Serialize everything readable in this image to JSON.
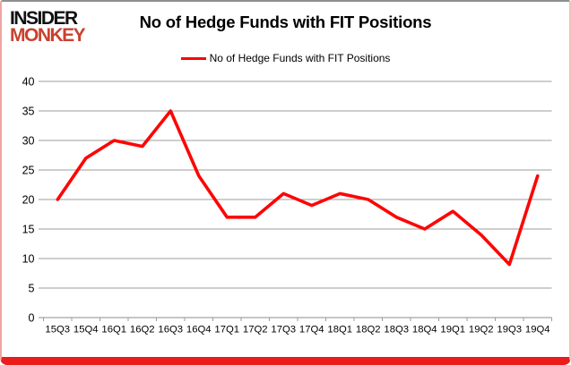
{
  "brand": {
    "line1": "INSIDER",
    "line2": "MONKEY"
  },
  "title": "No of Hedge Funds with FIT Positions",
  "legend": {
    "label": "No of Hedge Funds with FIT Positions",
    "color": "#ff0000"
  },
  "colors": {
    "series_red": "#fe0505",
    "logo_red": "#c9412f",
    "grid": "#9c9c9c",
    "axis": "#8c8c8c",
    "text": "#000000",
    "bottom_bar_red": "#ec1c1c"
  },
  "chart_data": {
    "type": "line",
    "title": "No of Hedge Funds with FIT Positions",
    "categories": [
      "15Q3",
      "15Q4",
      "16Q1",
      "16Q2",
      "16Q3",
      "16Q4",
      "17Q1",
      "17Q2",
      "17Q3",
      "17Q4",
      "18Q1",
      "18Q2",
      "18Q3",
      "18Q4",
      "19Q1",
      "19Q2",
      "19Q3",
      "19Q4"
    ],
    "series": [
      {
        "name": "No of Hedge Funds with FIT Positions",
        "color": "#fe0505",
        "values": [
          20,
          27,
          30,
          29,
          35,
          24,
          17,
          17,
          21,
          19,
          21,
          20,
          17,
          15,
          18,
          14,
          9,
          24
        ]
      }
    ],
    "xlabel": "",
    "ylabel": "",
    "ylim": [
      0,
      40
    ],
    "yticks": [
      0,
      5,
      10,
      15,
      20,
      25,
      30,
      35,
      40
    ],
    "grid": true,
    "legend_position": "top",
    "markers": false
  }
}
